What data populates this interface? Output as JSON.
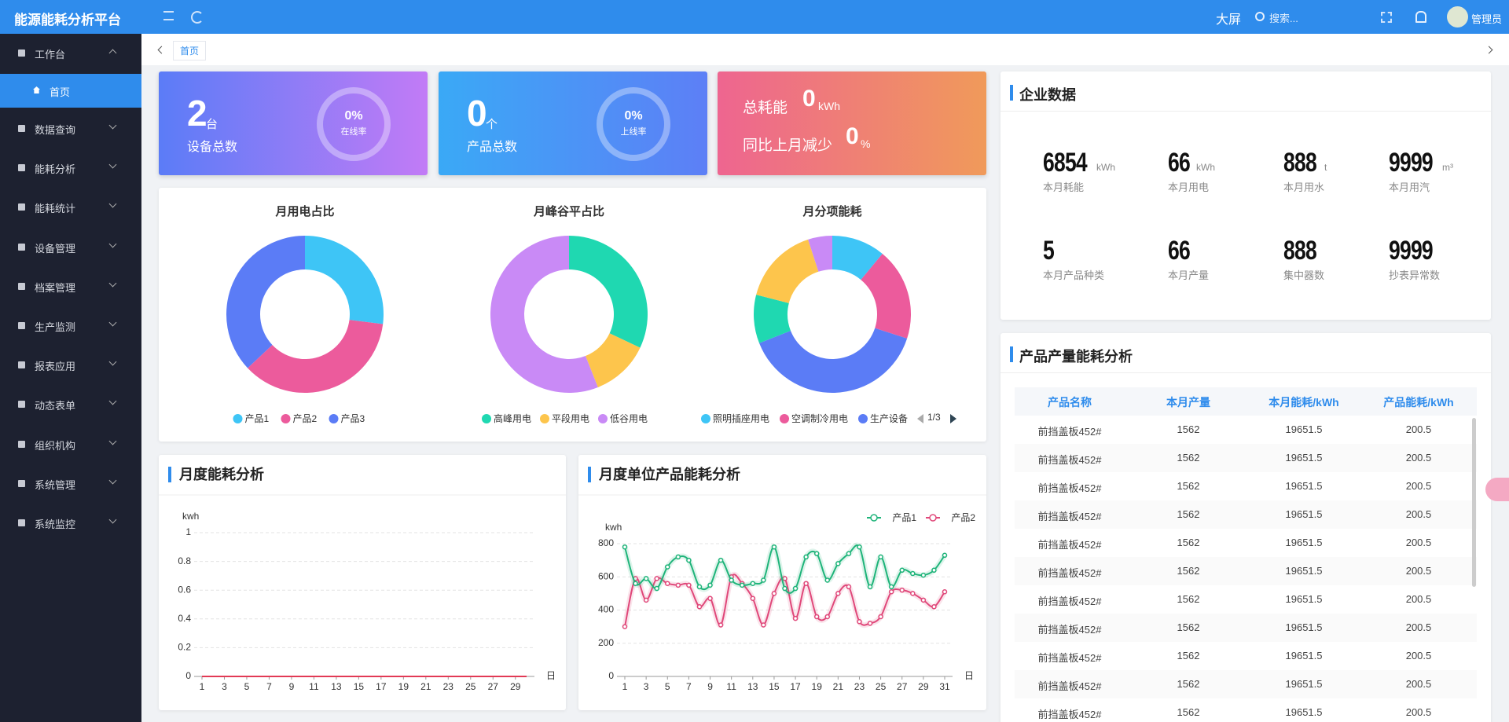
{
  "header": {
    "title": "能源能耗分析平台",
    "big_screen": "大屏",
    "search_placeholder": "搜索...",
    "user": "管理员"
  },
  "menu": [
    {
      "label": "工作台",
      "children": [
        "首页"
      ]
    },
    {
      "label": "数据查询"
    },
    {
      "label": "能耗分析"
    },
    {
      "label": "能耗统计"
    },
    {
      "label": "设备管理"
    },
    {
      "label": "档案管理"
    },
    {
      "label": "生产监测"
    },
    {
      "label": "报表应用"
    },
    {
      "label": "动态表单"
    },
    {
      "label": "组织机构"
    },
    {
      "label": "系统管理"
    },
    {
      "label": "系统监控"
    }
  ],
  "breadcrumb": "首页",
  "cards": [
    {
      "value": 2,
      "unit": "台",
      "label": "设备总数",
      "rate": "0%",
      "rate_label": "在线率"
    },
    {
      "value": 0,
      "unit": "个",
      "label": "产品总数",
      "rate": "0%",
      "rate_label": "上线率"
    },
    {
      "total_label": "总耗能",
      "total": 0,
      "total_unit": "kWh",
      "change_label": "同比上月减少",
      "change": 0,
      "change_unit": "%"
    }
  ],
  "chart_data": [
    {
      "type": "pie",
      "title": "月用电占比",
      "categories": [
        "产品1",
        "产品2",
        "产品3"
      ],
      "values": [
        27,
        36,
        37
      ],
      "colors": [
        "#3ec5f6",
        "#ec5b9c",
        "#5b7cf6"
      ]
    },
    {
      "type": "pie",
      "title": "月峰谷平占比",
      "categories": [
        "高峰用电",
        "平段用电",
        "低谷用电"
      ],
      "values": [
        32,
        12,
        56
      ],
      "colors": [
        "#1fd8b1",
        "#fdc54c",
        "#c98af6"
      ]
    },
    {
      "type": "pie",
      "title": "月分项能耗",
      "categories": [
        "照明插座用电",
        "空调制冷用电",
        "生产设备",
        null,
        null,
        null
      ],
      "values": [
        11,
        19,
        39,
        10,
        16,
        5
      ],
      "colors": [
        "#3ec5f6",
        "#ec5b9c",
        "#5b7cf6",
        "#1fd8b1",
        "#fdc54c",
        "#c98af6"
      ],
      "legend_page": "1/3"
    },
    {
      "type": "line",
      "title": "月度能耗分析",
      "y_label": "kwh",
      "x_label": "日",
      "x": [
        1,
        2,
        3,
        4,
        5,
        6,
        7,
        8,
        9,
        10,
        11,
        12,
        13,
        14,
        15,
        16,
        17,
        18,
        19,
        20,
        21,
        22,
        23,
        24,
        25,
        26,
        27,
        28,
        29,
        30
      ],
      "xlim": [
        1,
        30
      ],
      "xticks": [
        1,
        3,
        5,
        7,
        9,
        11,
        13,
        15,
        17,
        19,
        21,
        23,
        25,
        27,
        29
      ],
      "ylim": [
        0,
        1
      ],
      "yticks": [
        0,
        0.2,
        0.4,
        0.6,
        0.8,
        1
      ],
      "grid": true,
      "series": [
        {
          "color": "#e23a55",
          "values": [
            0,
            0,
            0,
            0,
            0,
            0,
            0,
            0,
            0,
            0,
            0,
            0,
            0,
            0,
            0,
            0,
            0,
            0,
            0,
            0,
            0,
            0,
            0,
            0,
            0,
            0,
            0,
            0,
            0,
            0
          ]
        }
      ]
    },
    {
      "type": "line",
      "title": "月度单位产品能耗分析",
      "y_label": "kwh",
      "x_label": "日",
      "x": [
        1,
        2,
        3,
        4,
        5,
        6,
        7,
        8,
        9,
        10,
        11,
        12,
        13,
        14,
        15,
        16,
        17,
        18,
        19,
        20,
        21,
        22,
        23,
        24,
        25,
        26,
        27,
        28,
        29,
        30,
        31
      ],
      "xlim": [
        1,
        31
      ],
      "xticks": [
        1,
        3,
        5,
        7,
        9,
        11,
        13,
        15,
        17,
        19,
        21,
        23,
        25,
        27,
        29,
        31
      ],
      "ylim": [
        0,
        800
      ],
      "yticks": [
        0,
        200,
        400,
        600,
        800
      ],
      "grid": true,
      "legend": "top-right",
      "smooth": true,
      "series": [
        {
          "name": "产品1",
          "color": "#1fb47a",
          "values": [
            780,
            560,
            590,
            530,
            660,
            720,
            700,
            540,
            550,
            700,
            580,
            550,
            560,
            580,
            780,
            530,
            530,
            720,
            740,
            580,
            680,
            740,
            780,
            540,
            720,
            540,
            640,
            620,
            610,
            640,
            730
          ]
        },
        {
          "name": "产品2",
          "color": "#e0487a",
          "values": [
            300,
            590,
            460,
            590,
            560,
            550,
            550,
            420,
            470,
            310,
            600,
            560,
            470,
            310,
            500,
            590,
            350,
            560,
            360,
            360,
            500,
            540,
            330,
            320,
            360,
            510,
            520,
            500,
            460,
            420,
            510
          ]
        }
      ]
    }
  ],
  "enterprise": {
    "title": "企业数据",
    "items": [
      {
        "value": 6854,
        "unit": "kWh",
        "label": "本月耗能"
      },
      {
        "value": 66,
        "unit": "kWh",
        "label": "本月用电"
      },
      {
        "value": 888,
        "unit": "t",
        "label": "本月用水"
      },
      {
        "value": 9999,
        "unit": "m³",
        "label": "本月用汽"
      },
      {
        "value": 5,
        "label": "本月产品种类"
      },
      {
        "value": 66,
        "label": "本月产量"
      },
      {
        "value": 888,
        "label": "集中器数"
      },
      {
        "value": 9999,
        "label": "抄表异常数"
      }
    ]
  },
  "product_table": {
    "title": "产品产量能耗分析",
    "columns": [
      "产品名称",
      "本月产量",
      "本月能耗/kWh",
      "产品能耗/kWh"
    ],
    "rows": [
      [
        "前挡盖板452#",
        1562,
        19651.5,
        200.5
      ],
      [
        "前挡盖板452#",
        1562,
        19651.5,
        200.5
      ],
      [
        "前挡盖板452#",
        1562,
        19651.5,
        200.5
      ],
      [
        "前挡盖板452#",
        1562,
        19651.5,
        200.5
      ],
      [
        "前挡盖板452#",
        1562,
        19651.5,
        200.5
      ],
      [
        "前挡盖板452#",
        1562,
        19651.5,
        200.5
      ],
      [
        "前挡盖板452#",
        1562,
        19651.5,
        200.5
      ],
      [
        "前挡盖板452#",
        1562,
        19651.5,
        200.5
      ],
      [
        "前挡盖板452#",
        1562,
        19651.5,
        200.5
      ],
      [
        "前挡盖板452#",
        1562,
        19651.5,
        200.5
      ],
      [
        "前挡盖板452#",
        1562,
        19651.5,
        200.5
      ]
    ]
  }
}
